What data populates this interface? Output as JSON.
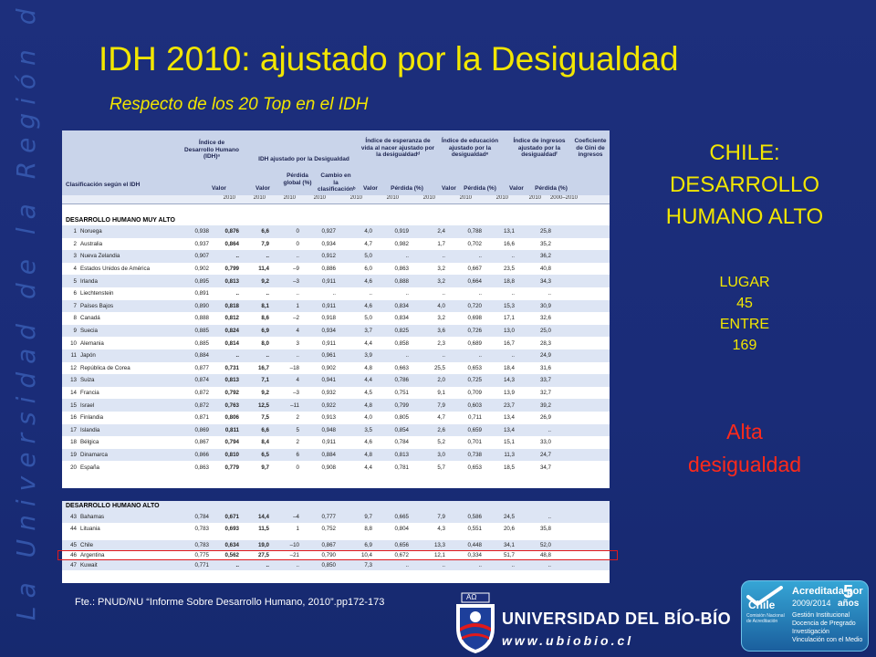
{
  "side_text": "La Universidad de la Región del Bío-Bío",
  "slide": {
    "title": "IDH 2010: ajustado por la Desigualdad",
    "subtitle": "Respecto de los 20 Top en el IDH",
    "chile_heading": [
      "CHILE:",
      "DESARROLLO",
      "HUMANO ALTO"
    ],
    "rank": [
      "LUGAR",
      "45",
      "ENTRE",
      "169"
    ],
    "inequality": [
      "Alta",
      "desigualdad"
    ],
    "source": "Fte.: PNUD/NU “Informe Sobre Desarrollo Humano, 2010”.pp172-173"
  },
  "table": {
    "headers": {
      "class": "Clasificación según el IDH",
      "idh": "Índice de Desarrollo Humano (IDH)ᵃ",
      "adj": "IDH ajustado por la Desigualdad",
      "life": "Índice de esperanza de vida al nacer ajustado por la desigualdadᵈ",
      "edu": "Índice de educación ajustado por la desigualdadᵉ",
      "inc": "Índice de ingresos ajustado por la desigualdadᶠ",
      "gini": "Coeficiente de Gini de ingresos",
      "valor": "Valor",
      "perdida": "Pérdida global (%)",
      "cambio": "Cambio en la clasificaciónᵇ",
      "perdida2": "Pérdida (%)",
      "years": [
        "2010",
        "2010",
        "2010",
        "2010",
        "2010",
        "2010",
        "2010",
        "2010",
        "2010",
        "2010",
        "2000–2010"
      ]
    },
    "section_very_high": "DESARROLLO HUMANO MUY ALTO",
    "section_high": "DESARROLLO HUMANO ALTO",
    "rows_very_high": [
      [
        "1",
        "Noruega",
        "0,938",
        "0,876",
        "6,6",
        "0",
        "0,927",
        "4,0",
        "0,919",
        "2,4",
        "0,788",
        "13,1",
        "25,8"
      ],
      [
        "2",
        "Australia",
        "0,937",
        "0,864",
        "7,9",
        "0",
        "0,934",
        "4,7",
        "0,982",
        "1,7",
        "0,702",
        "16,6",
        "35,2"
      ],
      [
        "3",
        "Nueva Zelandia",
        "0,907",
        "..",
        "..",
        "..",
        "0,912",
        "5,0",
        "..",
        "..",
        "..",
        "..",
        "36,2"
      ],
      [
        "4",
        "Estados Unidos de América",
        "0,902",
        "0,799",
        "11,4",
        "–9",
        "0,886",
        "6,0",
        "0,863",
        "3,2",
        "0,667",
        "23,5",
        "40,8"
      ],
      [
        "5",
        "Irlanda",
        "0,895",
        "0,813",
        "9,2",
        "–3",
        "0,911",
        "4,6",
        "0,888",
        "3,2",
        "0,664",
        "18,8",
        "34,3"
      ],
      [
        "6",
        "Liechtenstein",
        "0,891",
        "..",
        "..",
        "..",
        "..",
        "..",
        "..",
        "..",
        "..",
        "..",
        ".."
      ],
      [
        "7",
        "Países Bajos",
        "0,890",
        "0,818",
        "8,1",
        "1",
        "0,911",
        "4,6",
        "0,834",
        "4,0",
        "0,720",
        "15,3",
        "30,9"
      ],
      [
        "8",
        "Canadá",
        "0,888",
        "0,812",
        "8,6",
        "–2",
        "0,918",
        "5,0",
        "0,834",
        "3,2",
        "0,698",
        "17,1",
        "32,6"
      ],
      [
        "9",
        "Suecia",
        "0,885",
        "0,824",
        "6,9",
        "4",
        "0,934",
        "3,7",
        "0,825",
        "3,6",
        "0,726",
        "13,0",
        "25,0"
      ],
      [
        "10",
        "Alemania",
        "0,885",
        "0,814",
        "8,0",
        "3",
        "0,911",
        "4,4",
        "0,858",
        "2,3",
        "0,689",
        "16,7",
        "28,3"
      ],
      [
        "11",
        "Japón",
        "0,884",
        "..",
        "..",
        "..",
        "0,961",
        "3,9",
        "..",
        "..",
        "..",
        "..",
        "24,9"
      ],
      [
        "12",
        "República de Corea",
        "0,877",
        "0,731",
        "16,7",
        "–18",
        "0,902",
        "4,8",
        "0,663",
        "25,5",
        "0,653",
        "18,4",
        "31,6"
      ],
      [
        "13",
        "Suiza",
        "0,874",
        "0,813",
        "7,1",
        "4",
        "0,941",
        "4,4",
        "0,786",
        "2,0",
        "0,725",
        "14,3",
        "33,7"
      ],
      [
        "14",
        "Francia",
        "0,872",
        "0,792",
        "9,2",
        "–3",
        "0,932",
        "4,5",
        "0,751",
        "9,1",
        "0,709",
        "13,9",
        "32,7"
      ],
      [
        "15",
        "Israel",
        "0,872",
        "0,763",
        "12,5",
        "–11",
        "0,922",
        "4,8",
        "0,799",
        "7,9",
        "0,603",
        "23,7",
        "39,2"
      ],
      [
        "16",
        "Finlandia",
        "0,871",
        "0,806",
        "7,5",
        "2",
        "0,913",
        "4,0",
        "0,805",
        "4,7",
        "0,711",
        "13,4",
        "26,9"
      ],
      [
        "17",
        "Islandia",
        "0,869",
        "0,811",
        "6,6",
        "5",
        "0,948",
        "3,5",
        "0,854",
        "2,6",
        "0,659",
        "13,4",
        ".."
      ],
      [
        "18",
        "Bélgica",
        "0,867",
        "0,794",
        "8,4",
        "2",
        "0,911",
        "4,6",
        "0,784",
        "5,2",
        "0,701",
        "15,1",
        "33,0"
      ],
      [
        "19",
        "Dinamarca",
        "0,866",
        "0,810",
        "6,5",
        "6",
        "0,884",
        "4,8",
        "0,813",
        "3,0",
        "0,738",
        "11,3",
        "24,7"
      ],
      [
        "20",
        "España",
        "0,863",
        "0,779",
        "9,7",
        "0",
        "0,908",
        "4,4",
        "0,781",
        "5,7",
        "0,653",
        "18,5",
        "34,7"
      ]
    ],
    "rows_high_a": [
      [
        "43",
        "Bahamas",
        "0,784",
        "0,671",
        "14,4",
        "–4",
        "0,777",
        "9,7",
        "0,665",
        "7,9",
        "0,586",
        "24,5",
        "..",
        ""
      ],
      [
        "44",
        "Lituania",
        "0,783",
        "0,693",
        "11,5",
        "1",
        "0,752",
        "8,8",
        "0,804",
        "4,3",
        "0,551",
        "20,6",
        "35,8",
        ""
      ]
    ],
    "rows_high_b": [
      [
        "45",
        "Chile",
        "0,783",
        "0,634",
        "19,0",
        "–10",
        "0,867",
        "6,9",
        "0,656",
        "13,3",
        "0,448",
        "34,1",
        "52,0"
      ],
      [
        "46",
        "Argentina",
        "0,775",
        "0,562",
        "27,5",
        "–21",
        "0,790",
        "10,4",
        "0,672",
        "12,1",
        "0,334",
        "51,7",
        "48,8"
      ],
      [
        "47",
        "Kuwait",
        "0,771",
        "..",
        "..",
        "..",
        "0,850",
        "7,3",
        "..",
        "..",
        "..",
        "..",
        ".."
      ]
    ]
  },
  "logos": {
    "university_name": "UNIVERSIDAD DEL BÍO-BÍO",
    "university_web": "www.ubiobio.cl",
    "crest_letters": "ΑΩ",
    "accreditation_title": "Acreditada por",
    "accreditation_years_num": "5",
    "accreditation_years_word": "años",
    "accreditation_period": "2009/2014",
    "accreditation_areas": [
      "Gestión Institucional",
      "Docencia de Pregrado",
      "Investigación",
      "Vinculación con el Medio"
    ],
    "agency_name": "Chile",
    "agency_sub": "Comisión Nacional de Acreditación"
  }
}
